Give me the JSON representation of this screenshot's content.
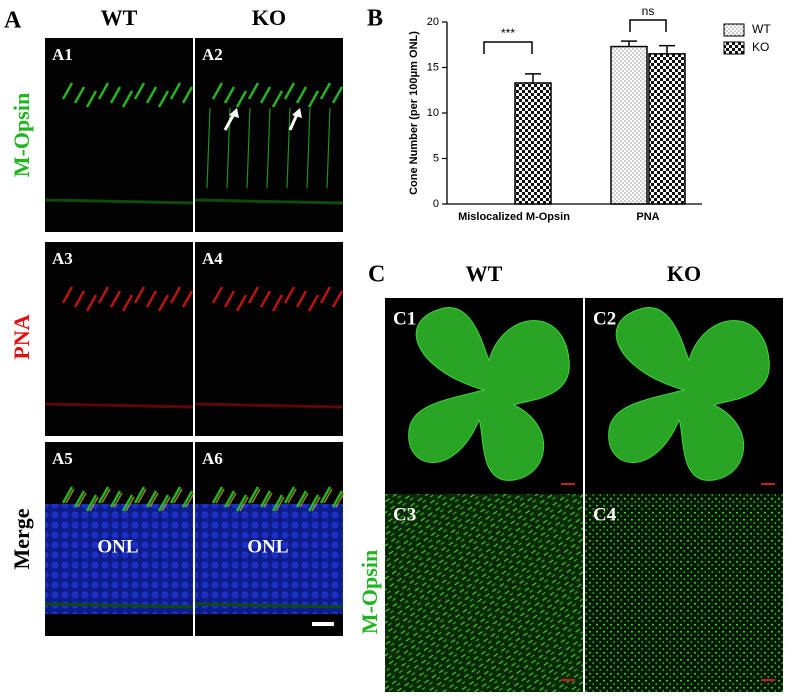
{
  "panel_a": {
    "label": "A",
    "columns": [
      "WT",
      "KO"
    ],
    "rows": [
      "M-Opsin",
      "PNA",
      "Merge"
    ],
    "tiles": [
      "A1",
      "A2",
      "A3",
      "A4",
      "A5",
      "A6"
    ],
    "annotations": [
      "ONL",
      "ONL"
    ]
  },
  "panel_b_label": "B",
  "chart_data": {
    "type": "bar",
    "y_label": "Cone Number (per 100μm ONL)",
    "categories": [
      "Mislocalized M-Opsin",
      "PNA"
    ],
    "series": [
      {
        "name": "WT",
        "color": "#ffffff",
        "pattern": "dots",
        "values": [
          0,
          17.3
        ],
        "errors": [
          0,
          0.6
        ]
      },
      {
        "name": "KO",
        "color": "#ffffff",
        "pattern": "checker",
        "values": [
          13.3,
          16.5
        ],
        "errors": [
          1.0,
          0.9
        ]
      }
    ],
    "annotations": [
      "***",
      "ns"
    ],
    "ylim": [
      0,
      20
    ],
    "yticks": [
      0,
      5,
      10,
      15,
      20
    ],
    "grid": false,
    "legend": "top-right"
  },
  "panel_c": {
    "label": "C",
    "columns": [
      "WT",
      "KO"
    ],
    "row_label": "M-Opsin",
    "tiles": [
      "C1",
      "C2",
      "C3",
      "C4"
    ]
  }
}
